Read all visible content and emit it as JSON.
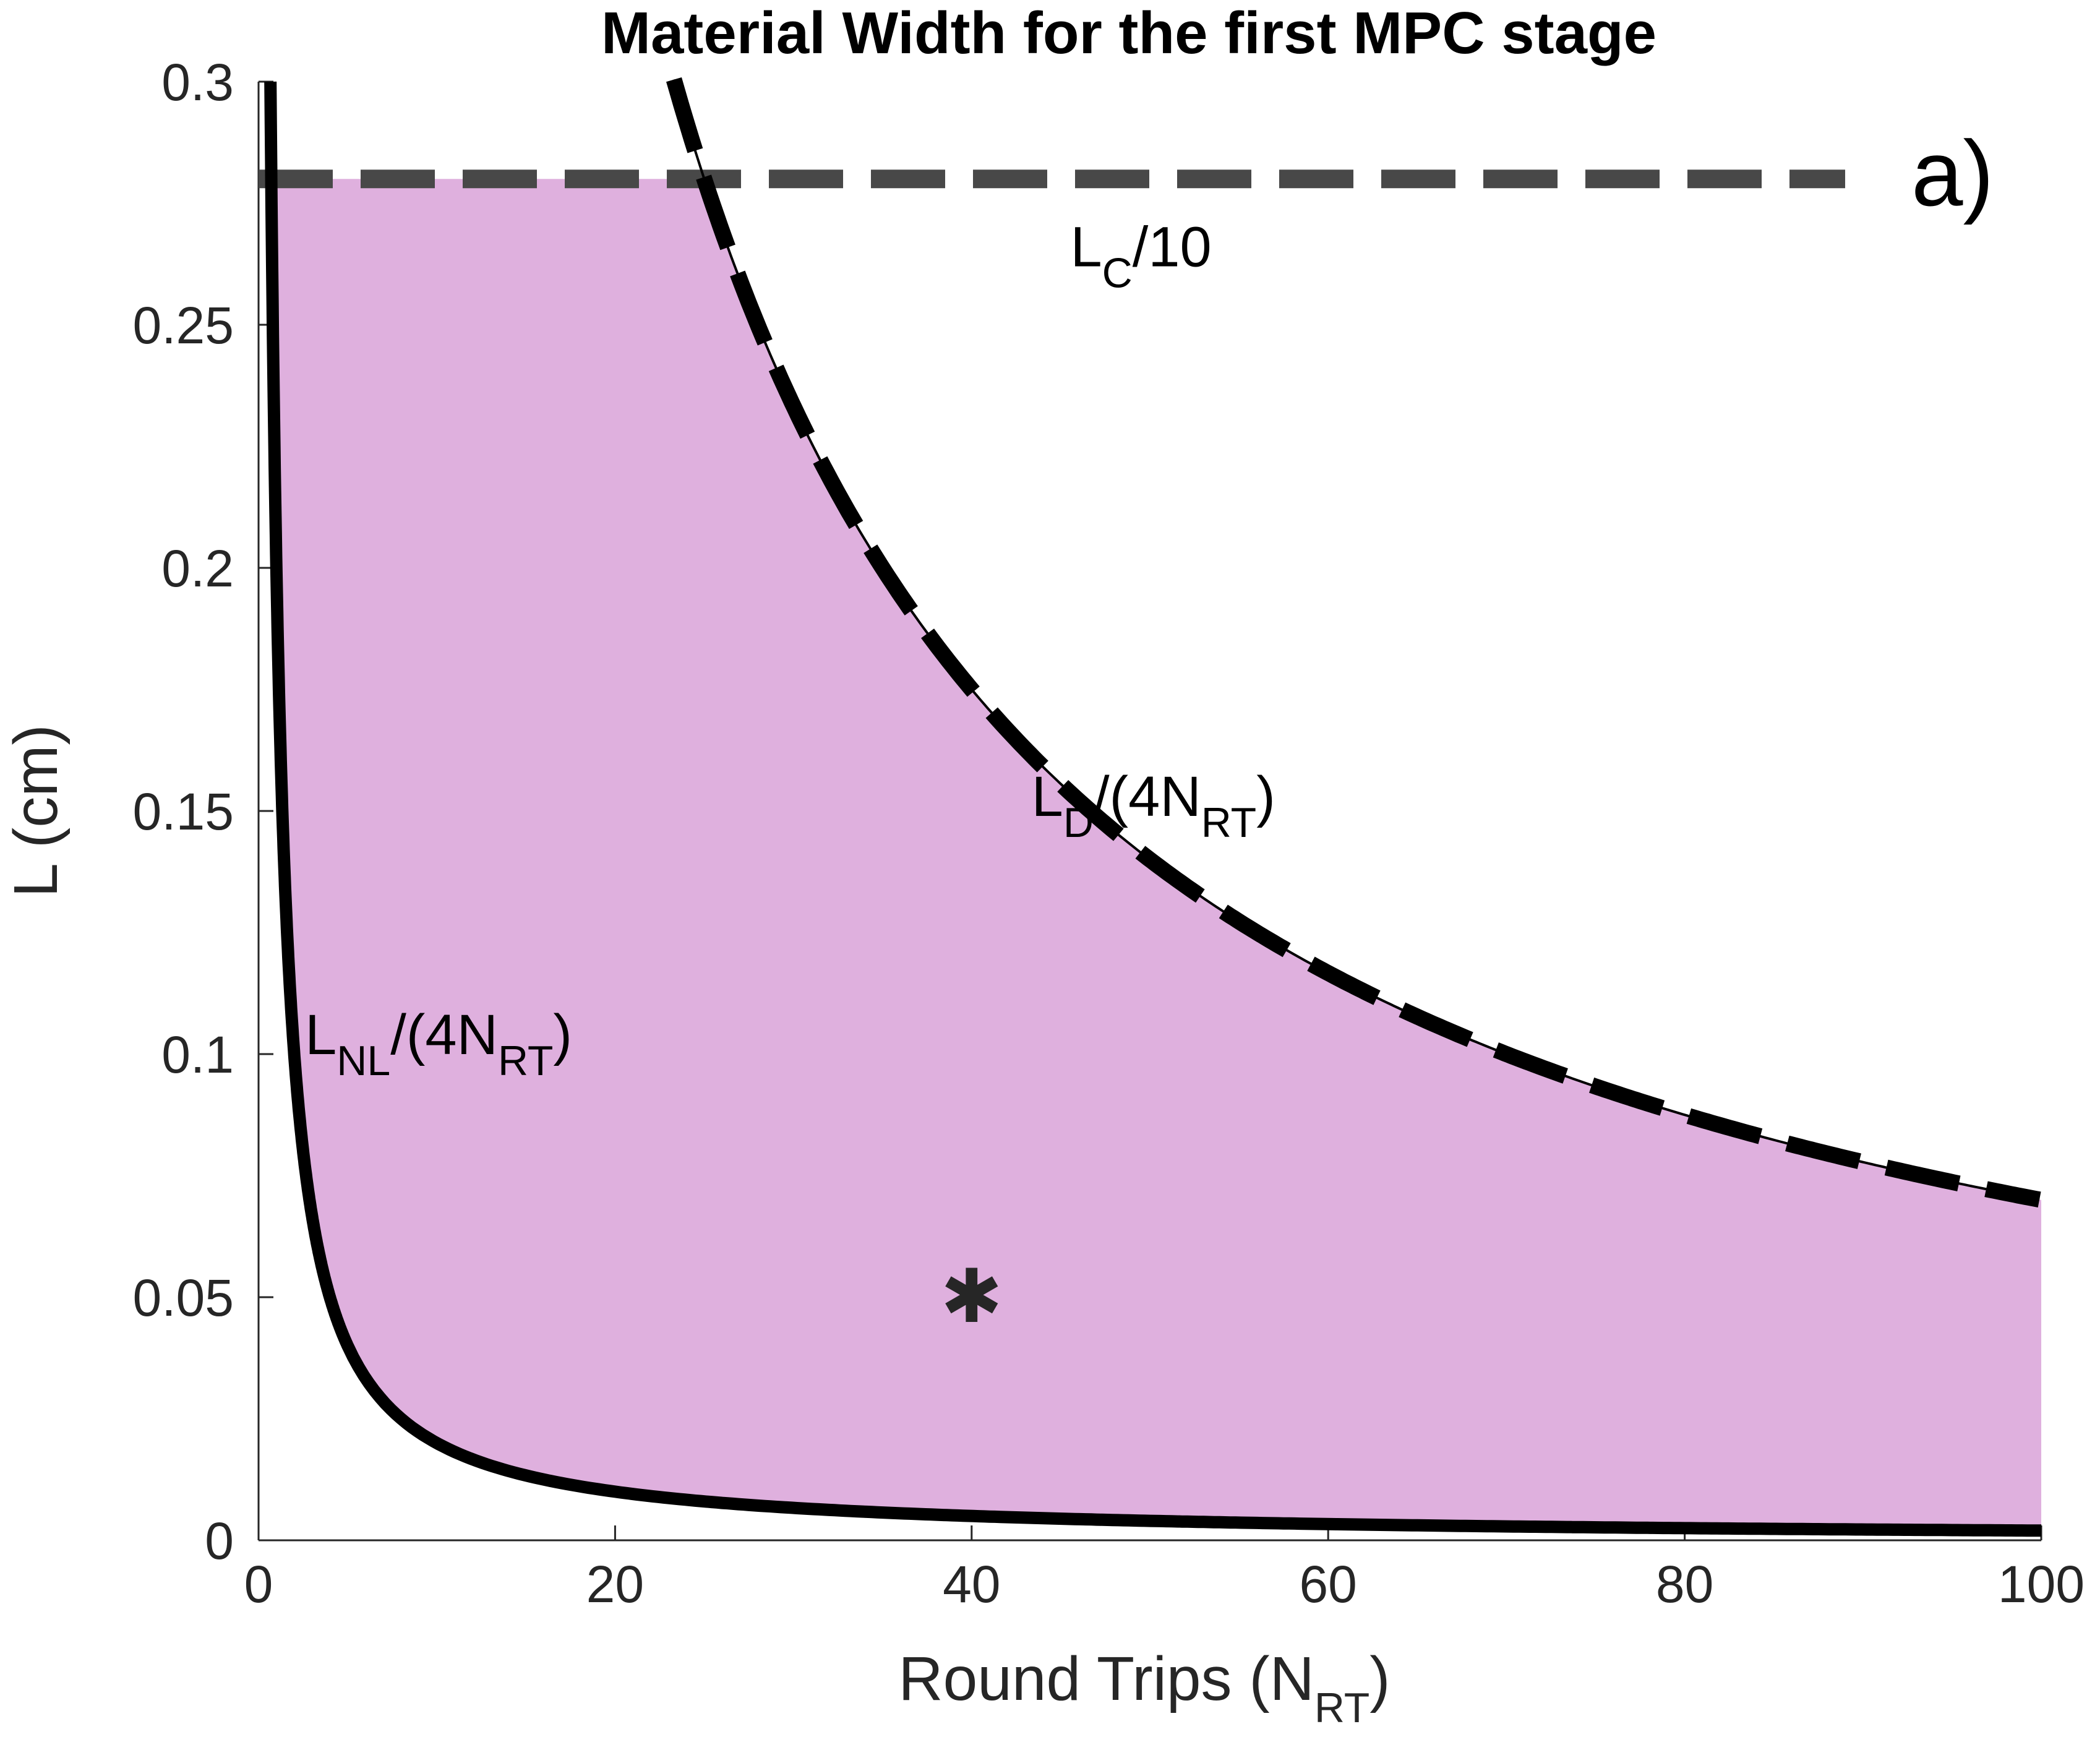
{
  "chart_data": {
    "type": "line",
    "title": "Material Width for the first MPC stage",
    "panel_label": "a)",
    "xlabel": {
      "base": "Round Trips (N",
      "sub": "RT",
      "tail": ")"
    },
    "ylabel": "L (cm)",
    "xlim": [
      0,
      100
    ],
    "ylim": [
      0,
      0.3
    ],
    "x_ticks": [
      0,
      20,
      40,
      60,
      80,
      100
    ],
    "x_tick_labels": [
      "0",
      "20",
      "40",
      "60",
      "80",
      "100"
    ],
    "y_ticks": [
      0,
      0.05,
      0.1,
      0.15,
      0.2,
      0.25,
      0.3
    ],
    "y_tick_labels": [
      "0",
      "0.05",
      "0.1",
      "0.15",
      "0.2",
      "0.25",
      "0.3"
    ],
    "series": [
      {
        "name": "LC/10",
        "style": "dashed-gray",
        "x": [
          0,
          89
        ],
        "y": [
          0.28,
          0.28
        ]
      },
      {
        "name": "LD/(4NRT)",
        "style": "dashed-black",
        "formula": "y = 7/x",
        "x": [
          23.3,
          25,
          30,
          35,
          40,
          45,
          50,
          55,
          60,
          65,
          70,
          75,
          80,
          85,
          90,
          95,
          100
        ],
        "y": [
          0.3,
          0.28,
          0.2333,
          0.2,
          0.175,
          0.1556,
          0.14,
          0.1273,
          0.1167,
          0.1077,
          0.1,
          0.0933,
          0.0875,
          0.0824,
          0.0778,
          0.0737,
          0.07
        ]
      },
      {
        "name": "LNL/(4NRT)",
        "style": "solid-black",
        "formula": "y = 0.2/x",
        "x": [
          0.667,
          0.8,
          1,
          1.25,
          1.5,
          2,
          2.5,
          3,
          4,
          5,
          6,
          8,
          10,
          12,
          15,
          20,
          25,
          30,
          40,
          50,
          60,
          70,
          80,
          90,
          100
        ],
        "y": [
          0.3,
          0.25,
          0.2,
          0.16,
          0.1333,
          0.1,
          0.08,
          0.0667,
          0.05,
          0.04,
          0.0333,
          0.025,
          0.02,
          0.0167,
          0.0133,
          0.01,
          0.008,
          0.0067,
          0.005,
          0.004,
          0.0033,
          0.0029,
          0.0025,
          0.0022,
          0.002
        ]
      }
    ],
    "fill_region": {
      "color": "#dfb0de",
      "description": "allowed region between lower and upper bounds",
      "upper": "min(0.28, LD/(4NRT))",
      "lower": "LNL/(4NRT)"
    },
    "marker": {
      "symbol": "✱",
      "x": 40,
      "y": 0.05
    },
    "annotations": [
      {
        "id": "lc",
        "base": "L",
        "sub": "C",
        "tail": "/10",
        "x": 49.5,
        "y": 0.262
      },
      {
        "id": "ld",
        "base": "L",
        "sub": "D",
        "tail": "/(4N",
        "sub2": "RT",
        "tail2": ")",
        "x": 50.2,
        "y": 0.149
      },
      {
        "id": "lnl",
        "base": "L",
        "sub": "NL",
        "tail": "/(4N",
        "sub2": "RT",
        "tail2": ")",
        "x": 10.1,
        "y": 0.1
      }
    ]
  }
}
